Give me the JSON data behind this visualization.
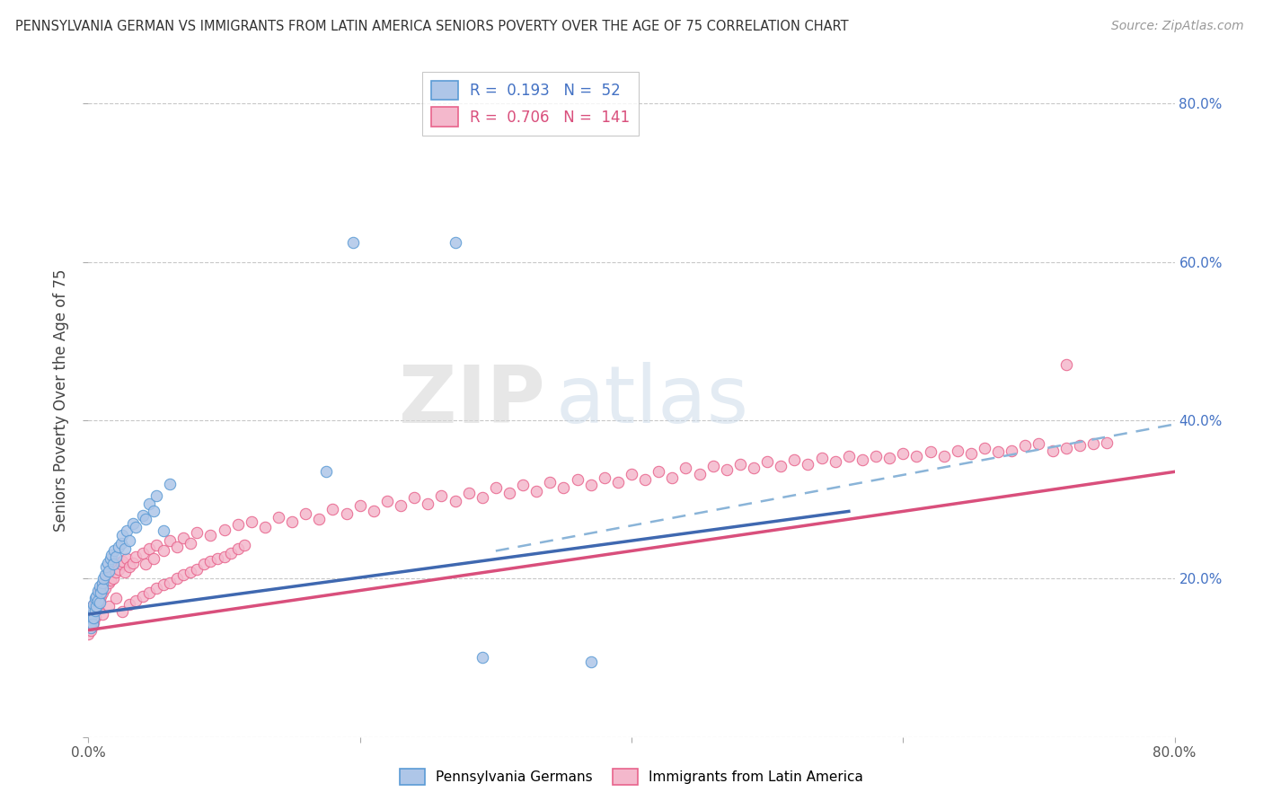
{
  "title": "PENNSYLVANIA GERMAN VS IMMIGRANTS FROM LATIN AMERICA SENIORS POVERTY OVER THE AGE OF 75 CORRELATION CHART",
  "source": "Source: ZipAtlas.com",
  "ylabel": "Seniors Poverty Over the Age of 75",
  "xlim": [
    0.0,
    0.8
  ],
  "ylim": [
    0.0,
    0.85
  ],
  "yticks": [
    0.0,
    0.2,
    0.4,
    0.6,
    0.8
  ],
  "watermark": "ZIPatlas",
  "blue_color": "#aec6e8",
  "blue_edge_color": "#5b9bd5",
  "pink_color": "#f4b8cc",
  "pink_edge_color": "#e8638c",
  "blue_line_color": "#3f68b0",
  "pink_line_color": "#d94f7c",
  "dashed_line_color": "#8ab4d8",
  "blue_r": 0.193,
  "blue_n": 52,
  "pink_r": 0.706,
  "pink_n": 141,
  "blue_line": {
    "x0": 0.0,
    "y0": 0.155,
    "x1": 0.56,
    "y1": 0.285
  },
  "pink_line": {
    "x0": 0.0,
    "y0": 0.135,
    "x1": 0.8,
    "y1": 0.335
  },
  "dashed_line": {
    "x0": 0.3,
    "y0": 0.235,
    "x1": 0.8,
    "y1": 0.395
  },
  "blue_scatter_x": [
    0.0,
    0.001,
    0.001,
    0.002,
    0.002,
    0.002,
    0.003,
    0.003,
    0.003,
    0.004,
    0.004,
    0.005,
    0.005,
    0.006,
    0.006,
    0.007,
    0.007,
    0.008,
    0.008,
    0.009,
    0.01,
    0.01,
    0.011,
    0.012,
    0.013,
    0.014,
    0.015,
    0.016,
    0.017,
    0.018,
    0.019,
    0.02,
    0.022,
    0.024,
    0.025,
    0.027,
    0.028,
    0.03,
    0.033,
    0.035,
    0.04,
    0.042,
    0.045,
    0.048,
    0.05,
    0.055,
    0.06,
    0.175,
    0.195,
    0.27,
    0.29,
    0.37
  ],
  "blue_scatter_y": [
    0.148,
    0.152,
    0.142,
    0.145,
    0.158,
    0.138,
    0.155,
    0.162,
    0.143,
    0.15,
    0.168,
    0.16,
    0.175,
    0.165,
    0.178,
    0.172,
    0.185,
    0.17,
    0.19,
    0.182,
    0.195,
    0.188,
    0.2,
    0.205,
    0.215,
    0.22,
    0.21,
    0.225,
    0.23,
    0.218,
    0.235,
    0.228,
    0.24,
    0.245,
    0.255,
    0.238,
    0.26,
    0.248,
    0.27,
    0.265,
    0.28,
    0.275,
    0.295,
    0.285,
    0.305,
    0.26,
    0.32,
    0.335,
    0.625,
    0.625,
    0.1,
    0.095
  ],
  "pink_scatter_x": [
    0.0,
    0.0,
    0.001,
    0.001,
    0.002,
    0.002,
    0.002,
    0.003,
    0.003,
    0.004,
    0.004,
    0.005,
    0.005,
    0.006,
    0.006,
    0.007,
    0.007,
    0.008,
    0.008,
    0.009,
    0.01,
    0.01,
    0.011,
    0.012,
    0.013,
    0.014,
    0.015,
    0.016,
    0.017,
    0.018,
    0.019,
    0.02,
    0.022,
    0.024,
    0.025,
    0.027,
    0.028,
    0.03,
    0.033,
    0.035,
    0.04,
    0.042,
    0.045,
    0.048,
    0.05,
    0.055,
    0.06,
    0.065,
    0.07,
    0.075,
    0.08,
    0.09,
    0.1,
    0.11,
    0.12,
    0.13,
    0.14,
    0.15,
    0.16,
    0.17,
    0.18,
    0.19,
    0.2,
    0.21,
    0.22,
    0.23,
    0.24,
    0.25,
    0.26,
    0.27,
    0.28,
    0.29,
    0.3,
    0.31,
    0.32,
    0.33,
    0.34,
    0.35,
    0.36,
    0.37,
    0.38,
    0.39,
    0.4,
    0.41,
    0.42,
    0.43,
    0.44,
    0.45,
    0.46,
    0.47,
    0.48,
    0.49,
    0.5,
    0.51,
    0.52,
    0.53,
    0.54,
    0.55,
    0.56,
    0.57,
    0.58,
    0.59,
    0.6,
    0.61,
    0.62,
    0.63,
    0.64,
    0.65,
    0.66,
    0.67,
    0.68,
    0.69,
    0.7,
    0.71,
    0.72,
    0.73,
    0.74,
    0.75,
    0.01,
    0.015,
    0.02,
    0.025,
    0.03,
    0.035,
    0.04,
    0.045,
    0.05,
    0.055,
    0.06,
    0.065,
    0.07,
    0.075,
    0.08,
    0.085,
    0.09,
    0.095,
    0.1,
    0.105,
    0.11,
    0.115,
    0.72
  ],
  "pink_scatter_y": [
    0.148,
    0.13,
    0.142,
    0.155,
    0.135,
    0.15,
    0.16,
    0.14,
    0.165,
    0.145,
    0.158,
    0.152,
    0.17,
    0.162,
    0.175,
    0.168,
    0.18,
    0.172,
    0.185,
    0.178,
    0.19,
    0.182,
    0.195,
    0.188,
    0.2,
    0.205,
    0.195,
    0.198,
    0.21,
    0.2,
    0.215,
    0.208,
    0.212,
    0.218,
    0.222,
    0.208,
    0.225,
    0.215,
    0.22,
    0.228,
    0.232,
    0.218,
    0.238,
    0.225,
    0.242,
    0.235,
    0.248,
    0.24,
    0.252,
    0.245,
    0.258,
    0.255,
    0.262,
    0.268,
    0.272,
    0.265,
    0.278,
    0.272,
    0.282,
    0.275,
    0.288,
    0.282,
    0.292,
    0.285,
    0.298,
    0.292,
    0.302,
    0.295,
    0.305,
    0.298,
    0.308,
    0.302,
    0.315,
    0.308,
    0.318,
    0.31,
    0.322,
    0.315,
    0.325,
    0.318,
    0.328,
    0.322,
    0.332,
    0.325,
    0.335,
    0.328,
    0.34,
    0.332,
    0.342,
    0.338,
    0.345,
    0.34,
    0.348,
    0.342,
    0.35,
    0.345,
    0.352,
    0.348,
    0.355,
    0.35,
    0.355,
    0.352,
    0.358,
    0.355,
    0.36,
    0.355,
    0.362,
    0.358,
    0.365,
    0.36,
    0.362,
    0.368,
    0.37,
    0.362,
    0.365,
    0.368,
    0.37,
    0.372,
    0.155,
    0.165,
    0.175,
    0.158,
    0.168,
    0.172,
    0.178,
    0.182,
    0.188,
    0.192,
    0.195,
    0.2,
    0.205,
    0.208,
    0.212,
    0.218,
    0.222,
    0.225,
    0.228,
    0.232,
    0.238,
    0.242,
    0.47
  ]
}
